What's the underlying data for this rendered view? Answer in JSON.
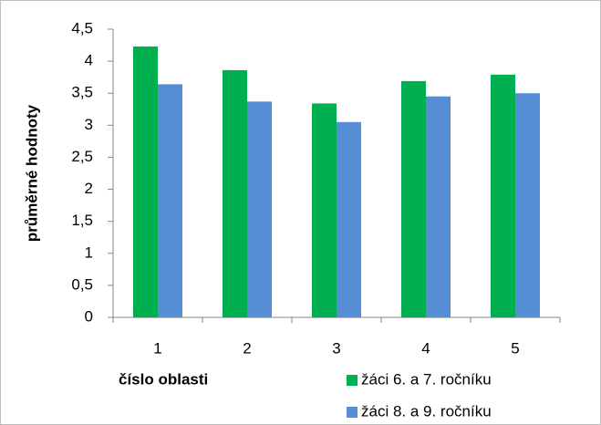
{
  "chart_data": {
    "type": "bar",
    "x_label": "číslo oblasti",
    "y_label": "průměrné hodnoty",
    "categories": [
      "1",
      "2",
      "3",
      "4",
      "5"
    ],
    "series": [
      {
        "name": "žáci 6. a 7. ročníku",
        "color": "#00b050",
        "values": [
          4.23,
          3.86,
          3.34,
          3.69,
          3.79
        ]
      },
      {
        "name": "žáci 8. a 9. ročníku",
        "color": "#558ed5",
        "values": [
          3.64,
          3.37,
          3.05,
          3.45,
          3.5
        ]
      }
    ],
    "ylim": [
      0,
      4.5
    ],
    "yticks": [
      0,
      {
        "value": 0.5,
        "label": "0,5"
      },
      1,
      {
        "value": 1.5,
        "label": "1,5"
      },
      2,
      {
        "value": 2.5,
        "label": "2,5"
      },
      3,
      {
        "value": 3.5,
        "label": "3,5"
      },
      4,
      {
        "value": 4.5,
        "label": "4,5"
      }
    ],
    "grid": false,
    "legend": "bottom-right"
  }
}
